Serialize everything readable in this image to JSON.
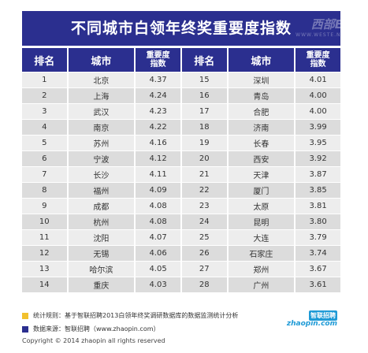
{
  "title": "不同城市白领年终奖重要度指数",
  "watermark": {
    "text": "西部E网",
    "sub": "WWW.WESTE.NET"
  },
  "headers": {
    "rank": "排名",
    "city": "城市",
    "index_line1": "重要度",
    "index_line2": "指数"
  },
  "left_rows": [
    {
      "rank": "1",
      "city": "北京",
      "index": "4.37"
    },
    {
      "rank": "2",
      "city": "上海",
      "index": "4.24"
    },
    {
      "rank": "3",
      "city": "武汉",
      "index": "4.23"
    },
    {
      "rank": "4",
      "city": "南京",
      "index": "4.22"
    },
    {
      "rank": "5",
      "city": "苏州",
      "index": "4.16"
    },
    {
      "rank": "6",
      "city": "宁波",
      "index": "4.12"
    },
    {
      "rank": "7",
      "city": "长沙",
      "index": "4.11"
    },
    {
      "rank": "8",
      "city": "福州",
      "index": "4.09"
    },
    {
      "rank": "9",
      "city": "成都",
      "index": "4.08"
    },
    {
      "rank": "10",
      "city": "杭州",
      "index": "4.08"
    },
    {
      "rank": "11",
      "city": "沈阳",
      "index": "4.07"
    },
    {
      "rank": "12",
      "city": "无锡",
      "index": "4.06"
    },
    {
      "rank": "13",
      "city": "哈尔滨",
      "index": "4.05"
    },
    {
      "rank": "14",
      "city": "重庆",
      "index": "4.03"
    }
  ],
  "right_rows": [
    {
      "rank": "15",
      "city": "深圳",
      "index": "4.01"
    },
    {
      "rank": "16",
      "city": "青岛",
      "index": "4.00"
    },
    {
      "rank": "17",
      "city": "合肥",
      "index": "4.00"
    },
    {
      "rank": "18",
      "city": "济南",
      "index": "3.99"
    },
    {
      "rank": "19",
      "city": "长春",
      "index": "3.95"
    },
    {
      "rank": "20",
      "city": "西安",
      "index": "3.92"
    },
    {
      "rank": "21",
      "city": "天津",
      "index": "3.87"
    },
    {
      "rank": "22",
      "city": "厦门",
      "index": "3.85"
    },
    {
      "rank": "23",
      "city": "太原",
      "index": "3.81"
    },
    {
      "rank": "24",
      "city": "昆明",
      "index": "3.80"
    },
    {
      "rank": "25",
      "city": "大连",
      "index": "3.79"
    },
    {
      "rank": "26",
      "city": "石家庄",
      "index": "3.74"
    },
    {
      "rank": "27",
      "city": "郑州",
      "index": "3.67"
    },
    {
      "rank": "28",
      "city": "广州",
      "index": "3.61"
    }
  ],
  "notes": {
    "rule": "统计规则：基于智联招聘2013白领年终奖调研数据库的数据监测统计分析",
    "source": "数据来源：智联招聘（www.zhaopin.com）"
  },
  "copyright": "Copyright © 2014 zhaopin all rights  reserved",
  "logo": {
    "top": "智联招聘",
    "bottom": "zhaopin.com"
  },
  "colors": {
    "header_blue": "#2b2f8f",
    "note_yellow": "#f2c12e",
    "note_blue": "#2b2f8f",
    "row_light": "#ededed",
    "row_dark": "#dcdcdc",
    "logo_blue": "#1e9ad6"
  }
}
